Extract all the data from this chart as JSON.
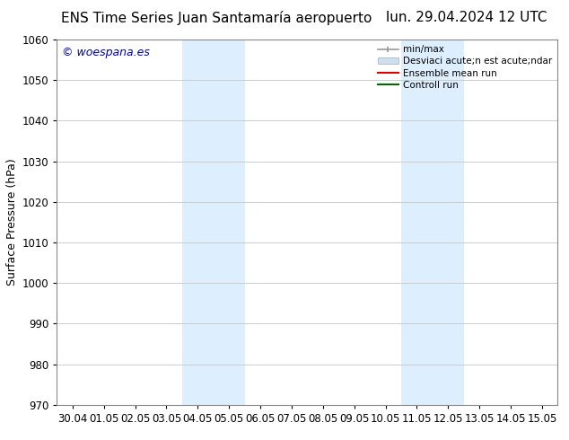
{
  "title_left": "ENS Time Series Juan Santamaría aeropuerto",
  "title_right": "lun. 29.04.2024 12 UTC",
  "ylabel": "Surface Pressure (hPa)",
  "ylim": [
    970,
    1060
  ],
  "yticks": [
    970,
    980,
    990,
    1000,
    1010,
    1020,
    1030,
    1040,
    1050,
    1060
  ],
  "xtick_labels": [
    "30.04",
    "01.05",
    "02.05",
    "03.05",
    "04.05",
    "05.05",
    "06.05",
    "07.05",
    "08.05",
    "09.05",
    "10.05",
    "11.05",
    "12.05",
    "13.05",
    "14.05",
    "15.05"
  ],
  "bg_color": "#ffffff",
  "plot_bg_color": "#ffffff",
  "shaded_regions": [
    {
      "xstart": 4.0,
      "xend": 6.0,
      "color": "#ddeeff"
    },
    {
      "xstart": 11.0,
      "xend": 13.0,
      "color": "#ddeeff"
    }
  ],
  "watermark_text": "© woespana.es",
  "watermark_color": "#0000bb",
  "legend_items": [
    {
      "label": "min/max",
      "color": "#999999",
      "lw": 1.2,
      "style": "minmax"
    },
    {
      "label": "Desviaci acute;n est acute;ndar",
      "color": "#cce0f0",
      "lw": 8,
      "style": "fill"
    },
    {
      "label": "Ensemble mean run",
      "color": "#dd0000",
      "lw": 1.5,
      "style": "line"
    },
    {
      "label": "Controll run",
      "color": "#006600",
      "lw": 1.5,
      "style": "line"
    }
  ],
  "grid_color": "#cccccc",
  "tick_label_fontsize": 8.5,
  "title_fontsize": 11,
  "ylabel_fontsize": 9,
  "watermark_fontsize": 9
}
